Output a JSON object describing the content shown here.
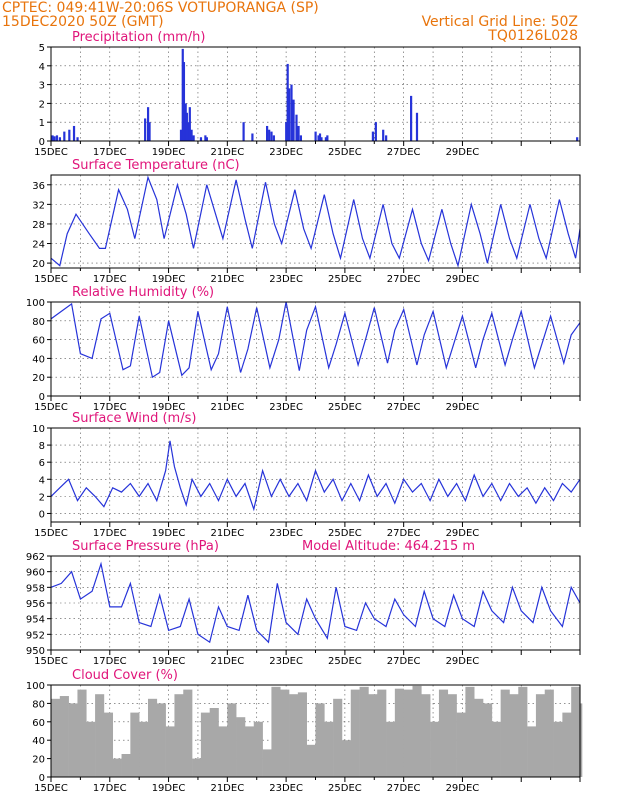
{
  "header": {
    "line1_left": "CPTEC:   049:41W-20:06S   VOTUPORANGA (SP)",
    "line2_left": "15DEC2020 50Z (GMT)",
    "line2_right": "Vertical Grid Line: 50Z",
    "line3_right": "TQ0126L028"
  },
  "colors": {
    "series": "#2633d9",
    "cloud": "#a8a8a8",
    "title": "#e0157a",
    "header": "#e8740c"
  },
  "x_tick_labels": [
    "15DEC",
    "17DEC",
    "19DEC",
    "21DEC",
    "23DEC",
    "25DEC",
    "27DEC",
    "29DEC"
  ],
  "chart_data": [
    {
      "type": "bar",
      "title": "Precipitation (mm/h)",
      "ylim": [
        0,
        5
      ],
      "yticks": [
        0,
        1,
        2,
        3,
        4,
        5
      ],
      "x_days": [
        0.05,
        0.12,
        0.2,
        0.3,
        0.45,
        0.62,
        0.78,
        0.9,
        3.2,
        3.3,
        3.35,
        4.42,
        4.48,
        4.52,
        4.58,
        4.62,
        4.68,
        4.72,
        4.78,
        4.85,
        5.1,
        5.25,
        5.3,
        6.55,
        6.85,
        7.35,
        7.42,
        7.5,
        7.58,
        8.0,
        8.05,
        8.1,
        8.18,
        8.25,
        8.35,
        8.42,
        8.5,
        9.0,
        9.1,
        9.15,
        9.2,
        9.35,
        9.4,
        10.95,
        11.05,
        11.3,
        11.4,
        12.25,
        12.45,
        17.9
      ],
      "values": [
        0.3,
        0.25,
        0.3,
        0.2,
        0.5,
        0.6,
        0.8,
        0.2,
        1.2,
        1.8,
        1.0,
        0.6,
        4.9,
        4.2,
        2.0,
        1.5,
        1.0,
        1.8,
        0.6,
        0.3,
        0.2,
        0.3,
        0.2,
        1.0,
        0.4,
        0.8,
        0.6,
        0.5,
        0.3,
        1.0,
        4.1,
        2.8,
        3.0,
        2.2,
        1.4,
        0.8,
        0.3,
        0.5,
        0.3,
        0.4,
        0.2,
        0.2,
        0.3,
        0.5,
        1.0,
        0.6,
        0.3,
        2.4,
        1.5,
        0.2
      ]
    },
    {
      "type": "line",
      "title": "Surface Temperature (nC)",
      "ylim": [
        19,
        38
      ],
      "yticks": [
        20,
        24,
        28,
        32,
        36
      ],
      "x_days": [
        0,
        0.3,
        0.55,
        0.85,
        1.3,
        1.65,
        1.85,
        2.3,
        2.6,
        2.85,
        3.3,
        3.6,
        3.85,
        4.3,
        4.6,
        4.85,
        5.3,
        5.6,
        5.85,
        6.3,
        6.6,
        6.85,
        7.3,
        7.6,
        7.85,
        8.3,
        8.6,
        8.85,
        9.3,
        9.6,
        9.85,
        10.3,
        10.6,
        10.85,
        11.3,
        11.6,
        11.85,
        12.3,
        12.6,
        12.85,
        13.3,
        13.6,
        13.85,
        14.3,
        14.6,
        14.85,
        15.3,
        15.6,
        15.85,
        16.3,
        16.6,
        16.85,
        17.3,
        17.6,
        17.85,
        18.0
      ],
      "values": [
        21,
        19.5,
        26,
        30,
        26,
        23,
        23,
        35,
        31,
        25,
        37.5,
        33,
        25,
        36,
        30,
        23,
        36,
        30,
        25,
        37,
        29,
        23,
        36.5,
        28,
        24,
        35,
        27,
        23,
        34,
        26,
        21,
        33,
        25,
        21,
        32,
        24,
        21,
        31,
        24,
        20.5,
        31,
        24,
        19.5,
        32,
        26,
        20,
        32,
        25,
        21,
        32,
        25,
        21,
        33,
        26,
        21,
        27
      ]
    },
    {
      "type": "line",
      "title": "Relative Humidity (%)",
      "ylim": [
        0,
        100
      ],
      "yticks": [
        0,
        20,
        40,
        60,
        80,
        100
      ],
      "x_days": [
        0,
        0.35,
        0.7,
        1.0,
        1.4,
        1.7,
        2.0,
        2.45,
        2.7,
        3.0,
        3.45,
        3.7,
        4.0,
        4.45,
        4.7,
        5.0,
        5.45,
        5.7,
        6.0,
        6.45,
        6.7,
        7.0,
        7.45,
        7.75,
        8.0,
        8.45,
        8.7,
        9.0,
        9.45,
        9.7,
        10.0,
        10.45,
        10.7,
        11.0,
        11.45,
        11.7,
        12.0,
        12.45,
        12.7,
        13.0,
        13.45,
        13.7,
        14.0,
        14.45,
        14.7,
        15.0,
        15.45,
        15.7,
        16.0,
        16.45,
        16.7,
        17.0,
        17.45,
        17.7,
        18.0
      ],
      "values": [
        82,
        90,
        98,
        45,
        40,
        82,
        88,
        28,
        32,
        85,
        20,
        25,
        80,
        22,
        30,
        90,
        28,
        45,
        95,
        25,
        50,
        94,
        30,
        60,
        100,
        27,
        70,
        95,
        30,
        55,
        88,
        33,
        60,
        94,
        35,
        70,
        92,
        33,
        65,
        90,
        30,
        55,
        85,
        30,
        60,
        88,
        33,
        60,
        90,
        30,
        55,
        85,
        35,
        65,
        78
      ]
    },
    {
      "type": "line",
      "title": "Surface Wind (m/s)",
      "ylim": [
        -1,
        10
      ],
      "yticks": [
        0,
        2,
        4,
        6,
        8,
        10
      ],
      "x_days": [
        0,
        0.3,
        0.6,
        0.9,
        1.2,
        1.5,
        1.8,
        2.1,
        2.4,
        2.7,
        3.0,
        3.3,
        3.6,
        3.9,
        4.05,
        4.2,
        4.4,
        4.6,
        4.8,
        5.1,
        5.4,
        5.7,
        6.0,
        6.3,
        6.6,
        6.9,
        7.2,
        7.5,
        7.8,
        8.1,
        8.4,
        8.7,
        9.0,
        9.3,
        9.6,
        9.9,
        10.2,
        10.5,
        10.8,
        11.1,
        11.4,
        11.7,
        12.0,
        12.3,
        12.6,
        12.9,
        13.2,
        13.5,
        13.8,
        14.1,
        14.4,
        14.7,
        15.0,
        15.3,
        15.6,
        15.9,
        16.2,
        16.5,
        16.8,
        17.1,
        17.4,
        17.7,
        18.0
      ],
      "values": [
        2,
        3,
        4,
        1.5,
        3,
        2,
        0.8,
        3,
        2.5,
        3.5,
        2,
        3.5,
        1.5,
        5,
        8.5,
        5.5,
        3,
        1,
        4,
        2,
        3.5,
        1.5,
        4,
        2,
        3.5,
        0.5,
        5,
        2,
        4,
        2,
        3.5,
        1.5,
        5,
        2.5,
        4,
        1.5,
        3.5,
        1.5,
        4.5,
        2,
        3.5,
        1.2,
        4,
        2.5,
        3.5,
        1.5,
        4,
        2,
        3.5,
        1.5,
        4.5,
        2,
        3.5,
        1.5,
        3.5,
        2,
        3,
        1.2,
        3,
        1.5,
        3.5,
        2.5,
        4
      ]
    },
    {
      "type": "line",
      "title": "Surface Pressure (hPa)",
      "annotation": "Model Altitude: 464.215  m",
      "ylim": [
        950,
        962
      ],
      "yticks": [
        950,
        952,
        954,
        956,
        958,
        960,
        962
      ],
      "x_days": [
        0,
        0.35,
        0.7,
        1.0,
        1.4,
        1.7,
        2.0,
        2.4,
        2.7,
        3.0,
        3.4,
        3.7,
        4.0,
        4.4,
        4.7,
        5.0,
        5.4,
        5.7,
        6.0,
        6.4,
        6.7,
        7.0,
        7.4,
        7.7,
        8.0,
        8.4,
        8.7,
        9.0,
        9.4,
        9.7,
        10.0,
        10.4,
        10.7,
        11.0,
        11.4,
        11.7,
        12.0,
        12.4,
        12.7,
        13.0,
        13.4,
        13.7,
        14.0,
        14.4,
        14.7,
        15.0,
        15.4,
        15.7,
        16.0,
        16.4,
        16.7,
        17.0,
        17.4,
        17.7,
        18.0
      ],
      "values": [
        958,
        958.5,
        960,
        956.5,
        957.5,
        961,
        955.5,
        955.5,
        958.5,
        953.5,
        953,
        957,
        952.5,
        953,
        956.5,
        952,
        951,
        955.5,
        953,
        952.5,
        957,
        952.5,
        951,
        958.5,
        953.5,
        952,
        956.5,
        954,
        951.5,
        958,
        953,
        952.5,
        956,
        954,
        953,
        956.5,
        954.5,
        953,
        957.5,
        954,
        953,
        957,
        954,
        953,
        957.5,
        955,
        953.5,
        958,
        955,
        953.5,
        958,
        955,
        953,
        958,
        956
      ]
    },
    {
      "type": "area",
      "title": "Cloud Cover (%)",
      "ylim": [
        0,
        100
      ],
      "yticks": [
        0,
        20,
        40,
        60,
        80,
        100
      ],
      "x_days": [
        0,
        0.3,
        0.6,
        0.9,
        1.2,
        1.5,
        1.8,
        2.1,
        2.4,
        2.7,
        3.0,
        3.3,
        3.6,
        3.9,
        4.2,
        4.5,
        4.8,
        5.1,
        5.4,
        5.7,
        6.0,
        6.3,
        6.6,
        6.9,
        7.2,
        7.5,
        7.8,
        8.1,
        8.4,
        8.7,
        9.0,
        9.3,
        9.6,
        9.9,
        10.2,
        10.5,
        10.8,
        11.1,
        11.4,
        11.7,
        12.0,
        12.3,
        12.6,
        12.9,
        13.2,
        13.5,
        13.8,
        14.1,
        14.4,
        14.7,
        15.0,
        15.3,
        15.6,
        15.9,
        16.2,
        16.5,
        16.8,
        17.1,
        17.4,
        17.7,
        18.0
      ],
      "values": [
        85,
        88,
        80,
        95,
        60,
        90,
        70,
        20,
        25,
        70,
        60,
        85,
        80,
        55,
        90,
        95,
        20,
        70,
        75,
        55,
        80,
        65,
        55,
        60,
        30,
        98,
        95,
        90,
        92,
        35,
        80,
        60,
        85,
        40,
        95,
        98,
        90,
        95,
        60,
        96,
        95,
        99,
        90,
        60,
        95,
        90,
        70,
        98,
        85,
        80,
        60,
        95,
        90,
        98,
        55,
        90,
        95,
        60,
        70,
        98,
        80
      ]
    }
  ]
}
